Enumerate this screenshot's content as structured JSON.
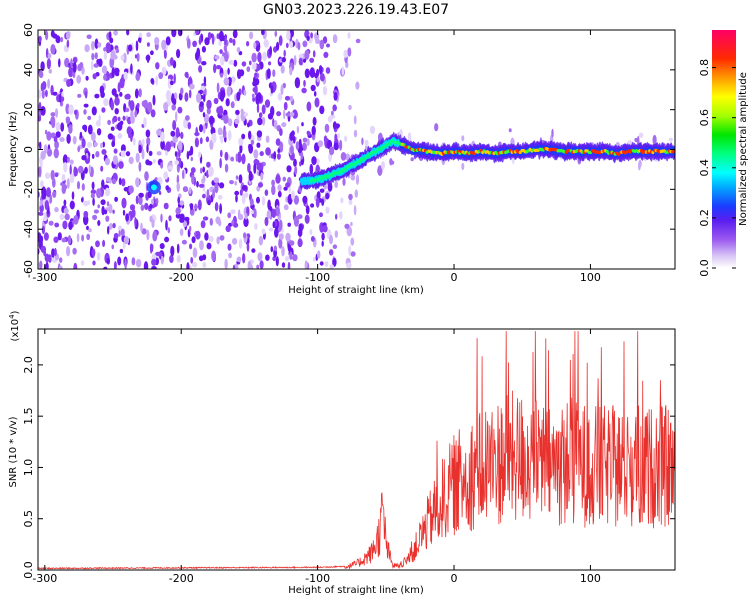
{
  "title": "GN03.2023.226.19.43.E07",
  "chart_data": [
    {
      "type": "heatmap",
      "xlabel": "Height of straight line (km)",
      "ylabel": "Frequency (Hz)",
      "xlim": [
        -305,
        162
      ],
      "ylim": [
        -60,
        60
      ],
      "xticks": [
        -300,
        -200,
        -100,
        0,
        100
      ],
      "yticks": [
        -60,
        -40,
        -20,
        0,
        20,
        40,
        60
      ],
      "colorbar": {
        "label": "Normalized spectral amplitude",
        "range": [
          0.0,
          0.95
        ],
        "ticks": [
          0.0,
          0.2,
          0.4,
          0.6,
          0.8
        ]
      },
      "ridge": {
        "x": [
          -110,
          -100,
          -90,
          -80,
          -70,
          -60,
          -50,
          -45,
          -40,
          -30,
          -20,
          -10,
          0,
          10,
          20,
          30,
          40,
          50,
          60,
          70,
          80,
          90,
          100,
          110,
          120,
          130,
          140,
          150,
          160
        ],
        "freq": [
          -16,
          -15,
          -13,
          -10,
          -6,
          -2,
          2,
          4,
          3,
          0,
          -1,
          -2,
          -1,
          -2,
          -1,
          -2,
          -1,
          -1,
          0,
          0,
          -1,
          -1,
          -1,
          -1,
          -2,
          -1,
          -1,
          -1,
          -1
        ]
      },
      "spot": {
        "x": -220,
        "freq": -19
      }
    },
    {
      "type": "line",
      "xlabel": "Height of straight line (km)",
      "ylabel": "SNR (10 * v/v)",
      "multiplier": "(x10",
      "multiplier_exp": "4",
      "multiplier_close": ")",
      "xlim": [
        -305,
        162
      ],
      "ylim": [
        0,
        2.35
      ],
      "xticks": [
        -300,
        -200,
        -100,
        0,
        100
      ],
      "yticks": [
        0.0,
        0.5,
        1.0,
        1.5,
        2.0
      ],
      "color": "#e8312d",
      "envelope": {
        "x": [
          -305,
          -100,
          -80,
          -70,
          -60,
          -55,
          -52,
          -50,
          -45,
          -40,
          -35,
          -30,
          -25,
          -20,
          -10,
          0,
          10,
          20,
          30,
          40,
          50,
          60,
          70,
          80,
          90,
          100,
          110,
          120,
          130,
          140,
          150,
          162
        ],
        "y": [
          0.01,
          0.02,
          0.03,
          0.08,
          0.2,
          0.4,
          0.68,
          0.3,
          0.05,
          0.05,
          0.1,
          0.2,
          0.35,
          0.5,
          0.75,
          0.95,
          1.05,
          1.15,
          1.2,
          1.25,
          1.25,
          1.2,
          1.15,
          1.2,
          1.2,
          1.15,
          1.15,
          1.15,
          1.15,
          1.15,
          1.15,
          1.15
        ]
      },
      "peak_max": 2.33
    }
  ]
}
